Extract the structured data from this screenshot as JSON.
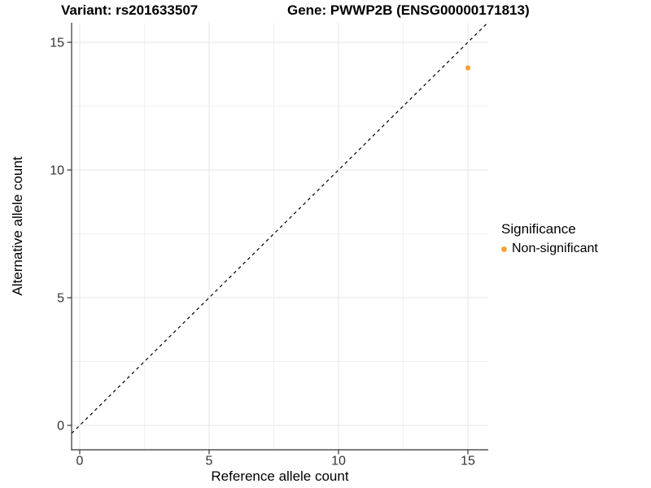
{
  "titles": {
    "variant": "Variant: rs201633507",
    "gene": "Gene: PWWP2B (ENSG00000171813)"
  },
  "axes": {
    "x_label": "Reference allele count",
    "y_label": "Alternative allele count"
  },
  "legend": {
    "title": "Significance",
    "position": "right",
    "items": [
      {
        "label": "Non-significant",
        "color": "#FAA43C",
        "marker": "dot"
      }
    ]
  },
  "colors": {
    "point": "#FAA43C",
    "grid_major": "#E6E6E6",
    "grid_minor": "#F0F0F0",
    "axis": "#333333",
    "tick_label": "#333333",
    "abline": "#000000",
    "background": "#FFFFFF",
    "title_text": "#000000"
  },
  "chart_data": {
    "type": "scatter",
    "title": "",
    "xlabel": "Reference allele count",
    "ylabel": "Alternative allele count",
    "x": [
      15
    ],
    "y": [
      14
    ],
    "series": [
      {
        "name": "Non-significant",
        "color": "#FAA43C",
        "points": [
          {
            "x": 15,
            "y": 14
          }
        ]
      }
    ],
    "x_ticks": [
      0,
      5,
      10,
      15
    ],
    "y_ticks": [
      0,
      5,
      10,
      15
    ],
    "x_minor_ticks": [
      2.5,
      7.5,
      12.5
    ],
    "y_minor_ticks": [
      2.5,
      7.5,
      12.5
    ],
    "xlim": [
      -0.31,
      15.79
    ],
    "ylim": [
      -0.95,
      15.76
    ],
    "grid": true,
    "legend_position": "right",
    "reference_line": {
      "type": "abline",
      "slope": 1,
      "intercept": 0,
      "style": "dashed",
      "color": "#000000"
    }
  }
}
